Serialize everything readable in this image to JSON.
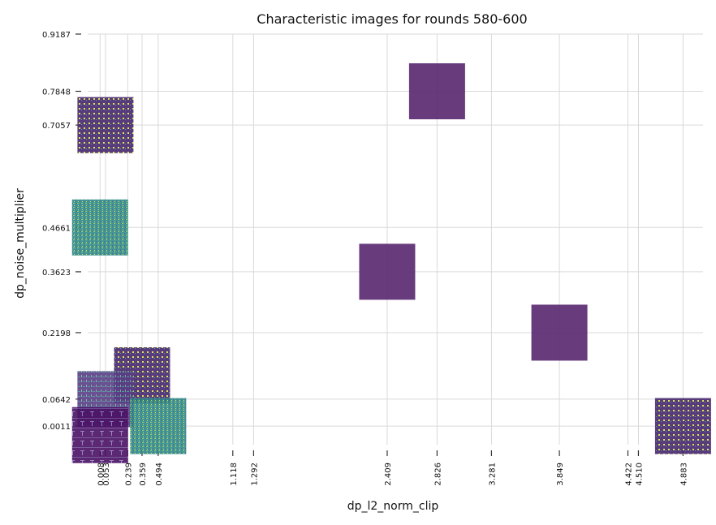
{
  "chart_data": {
    "type": "scatter",
    "title": "Characteristic images for rounds 580-600",
    "xlabel": "dp_l2_norm_clip",
    "ylabel": "dp_noise_multiplier",
    "xlim": [
      -0.15,
      5.05
    ],
    "ylim": [
      -0.05,
      0.9187
    ],
    "grid": true,
    "x_ticks": [
      "0.008",
      "0.053",
      "0.239",
      "0.359",
      "0.494",
      "1.118",
      "1.292",
      "2.409",
      "2.826",
      "3.281",
      "3.849",
      "4.422",
      "4.510",
      "4.883"
    ],
    "y_ticks": [
      "0.0011",
      "0.0642",
      "0.2198",
      "0.3623",
      "0.4661",
      "0.7057",
      "0.7848",
      "0.9187"
    ],
    "points": [
      {
        "x": 0.053,
        "y": 0.7057,
        "image": "noise-purple-grid"
      },
      {
        "x": 0.008,
        "y": 0.4661,
        "image": "noise-teal-yellow"
      },
      {
        "x": 2.826,
        "y": 0.7848,
        "image": "solid-purple"
      },
      {
        "x": 2.409,
        "y": 0.3623,
        "image": "solid-purple"
      },
      {
        "x": 3.849,
        "y": 0.2198,
        "image": "solid-purple"
      },
      {
        "x": 0.359,
        "y": 0.12,
        "image": "noise-purple-grid"
      },
      {
        "x": 0.053,
        "y": 0.0642,
        "image": "noise-purple-teal"
      },
      {
        "x": 0.494,
        "y": 0.0011,
        "image": "noise-teal-yellow"
      },
      {
        "x": 0.008,
        "y": -0.02,
        "image": "digits-purple"
      },
      {
        "x": 4.883,
        "y": 0.0011,
        "image": "noise-purple-grid"
      }
    ]
  },
  "colors": {
    "dark_purple": "#440154",
    "purple": "#5a2a75",
    "teal": "#21918c",
    "green": "#5ec962",
    "yellow": "#fde725",
    "blue": "#3b528b"
  }
}
